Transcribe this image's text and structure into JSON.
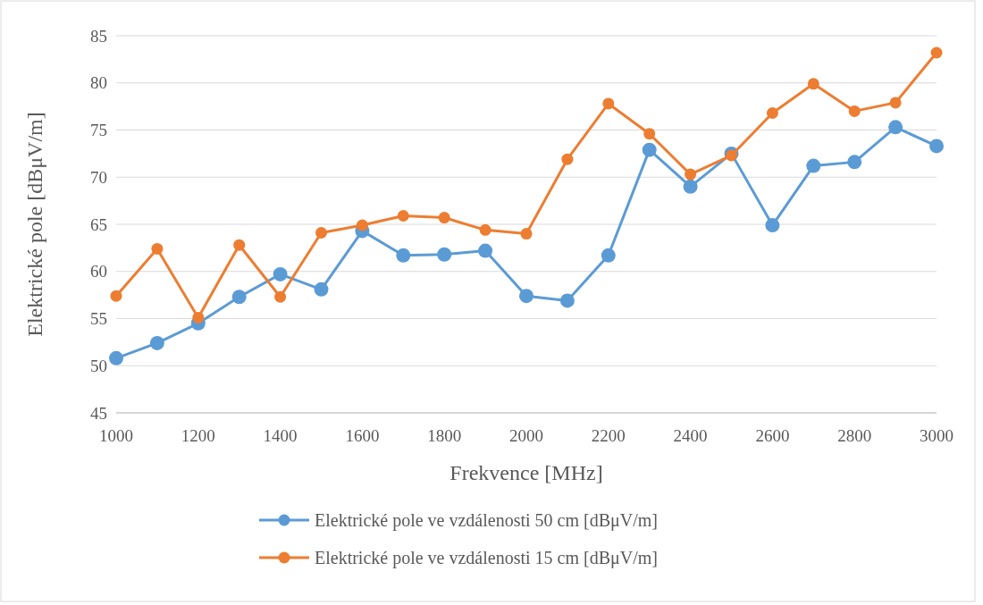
{
  "chart_data": {
    "type": "line",
    "xlabel": "Frekvence [MHz]",
    "ylabel": "Elektrické pole [dBμV/m]",
    "x": [
      1000,
      1100,
      1200,
      1300,
      1400,
      1500,
      1600,
      1700,
      1800,
      1900,
      2000,
      2100,
      2200,
      2300,
      2400,
      2500,
      2600,
      2700,
      2800,
      2900,
      3000
    ],
    "series": [
      {
        "name": "Elektrické pole ve vzdálenosti 50 cm [dBμV/m]",
        "color": "#5b9bd5",
        "values": [
          50.8,
          52.4,
          54.5,
          57.3,
          59.7,
          58.1,
          64.3,
          61.7,
          61.8,
          62.2,
          57.4,
          56.9,
          61.7,
          72.9,
          69.0,
          72.5,
          64.9,
          71.2,
          71.6,
          75.3,
          73.3
        ]
      },
      {
        "name": "Elektrické pole ve vzdálenosti 15 cm [dBμV/m]",
        "color": "#ed7d31",
        "values": [
          57.4,
          62.4,
          55.1,
          62.8,
          57.3,
          64.1,
          64.9,
          65.9,
          65.7,
          64.4,
          64.0,
          71.9,
          77.8,
          74.6,
          70.3,
          72.3,
          76.8,
          79.9,
          77.0,
          77.9,
          83.2
        ]
      }
    ],
    "xlim": [
      1000,
      3000
    ],
    "xticks": [
      1000,
      1200,
      1400,
      1600,
      1800,
      2000,
      2200,
      2400,
      2600,
      2800,
      3000
    ],
    "ylim": [
      45,
      85
    ],
    "yticks": [
      45,
      50,
      55,
      60,
      65,
      70,
      75,
      80,
      85
    ],
    "grid": "y",
    "legend": "bottom",
    "marker": "circle",
    "line_style": "solid"
  }
}
